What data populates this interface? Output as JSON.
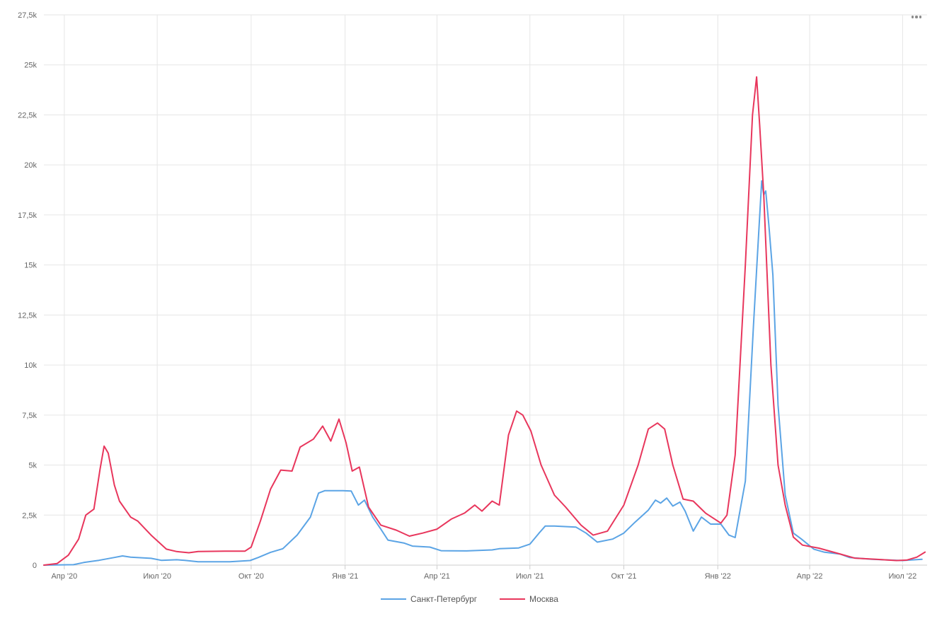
{
  "chart_data": {
    "type": "line",
    "title": "",
    "xlabel": "",
    "ylabel": "",
    "ylim": [
      0,
      27500
    ],
    "y_ticks": [
      0,
      2500,
      5000,
      7500,
      10000,
      12500,
      15000,
      17500,
      20000,
      22500,
      25000,
      27500
    ],
    "y_tick_labels": [
      "0",
      "2,5k",
      "5k",
      "7,5k",
      "10k",
      "12,5k",
      "15k",
      "17,5k",
      "20k",
      "22,5k",
      "25k",
      "27,5k"
    ],
    "x_ticks": [
      "2020-04-01",
      "2020-07-01",
      "2020-10-01",
      "2021-01-01",
      "2021-04-01",
      "2021-07-01",
      "2021-10-01",
      "2022-01-01",
      "2022-04-01",
      "2022-07-01"
    ],
    "x_tick_labels": [
      "Апр '20",
      "Июл '20",
      "Окт '20",
      "Янв '21",
      "Апр '21",
      "Июл '21",
      "Окт '21",
      "Янв '22",
      "Апр '22",
      "Июл '22"
    ],
    "xlim": [
      "2020-03-12",
      "2022-07-25"
    ],
    "grid": true,
    "legend": "bottom-center",
    "series": [
      {
        "name": "Санкт-Петербург",
        "color": "#5ba4e5",
        "points": [
          [
            "2020-03-12",
            0
          ],
          [
            "2020-04-10",
            20
          ],
          [
            "2020-04-20",
            130
          ],
          [
            "2020-05-05",
            240
          ],
          [
            "2020-05-20",
            380
          ],
          [
            "2020-05-28",
            460
          ],
          [
            "2020-06-05",
            400
          ],
          [
            "2020-06-25",
            340
          ],
          [
            "2020-07-05",
            240
          ],
          [
            "2020-07-20",
            270
          ],
          [
            "2020-07-28",
            240
          ],
          [
            "2020-08-10",
            170
          ],
          [
            "2020-09-10",
            170
          ],
          [
            "2020-09-30",
            230
          ],
          [
            "2020-10-08",
            380
          ],
          [
            "2020-10-20",
            640
          ],
          [
            "2020-11-01",
            820
          ],
          [
            "2020-11-15",
            1500
          ],
          [
            "2020-11-28",
            2400
          ],
          [
            "2020-12-06",
            3600
          ],
          [
            "2020-12-12",
            3720
          ],
          [
            "2020-12-30",
            3720
          ],
          [
            "2021-01-07",
            3700
          ],
          [
            "2021-01-14",
            3000
          ],
          [
            "2021-01-20",
            3250
          ],
          [
            "2021-01-28",
            2400
          ],
          [
            "2021-02-05",
            1800
          ],
          [
            "2021-02-12",
            1250
          ],
          [
            "2021-02-28",
            1100
          ],
          [
            "2021-03-08",
            950
          ],
          [
            "2021-03-25",
            900
          ],
          [
            "2021-04-05",
            720
          ],
          [
            "2021-04-30",
            710
          ],
          [
            "2021-05-25",
            760
          ],
          [
            "2021-06-01",
            820
          ],
          [
            "2021-06-20",
            860
          ],
          [
            "2021-07-01",
            1050
          ],
          [
            "2021-07-10",
            1600
          ],
          [
            "2021-07-16",
            1950
          ],
          [
            "2021-07-25",
            1950
          ],
          [
            "2021-08-15",
            1900
          ],
          [
            "2021-08-25",
            1600
          ],
          [
            "2021-09-05",
            1150
          ],
          [
            "2021-09-20",
            1300
          ],
          [
            "2021-10-01",
            1600
          ],
          [
            "2021-10-12",
            2150
          ],
          [
            "2021-10-25",
            2750
          ],
          [
            "2021-11-01",
            3250
          ],
          [
            "2021-11-06",
            3100
          ],
          [
            "2021-11-12",
            3350
          ],
          [
            "2021-11-18",
            2950
          ],
          [
            "2021-11-25",
            3150
          ],
          [
            "2021-11-30",
            2700
          ],
          [
            "2021-12-08",
            1700
          ],
          [
            "2021-12-16",
            2400
          ],
          [
            "2021-12-25",
            2050
          ],
          [
            "2022-01-04",
            2050
          ],
          [
            "2022-01-12",
            1500
          ],
          [
            "2022-01-18",
            1380
          ],
          [
            "2022-01-28",
            4200
          ],
          [
            "2022-02-05",
            12000
          ],
          [
            "2022-02-10",
            16500
          ],
          [
            "2022-02-13",
            19200
          ],
          [
            "2022-02-15",
            18500
          ],
          [
            "2022-02-17",
            18700
          ],
          [
            "2022-02-20",
            17000
          ],
          [
            "2022-02-24",
            14500
          ],
          [
            "2022-03-01",
            8000
          ],
          [
            "2022-03-08",
            3500
          ],
          [
            "2022-03-16",
            1600
          ],
          [
            "2022-03-24",
            1300
          ],
          [
            "2022-04-05",
            800
          ],
          [
            "2022-04-15",
            650
          ],
          [
            "2022-05-01",
            550
          ],
          [
            "2022-05-10",
            380
          ],
          [
            "2022-06-01",
            290
          ],
          [
            "2022-07-01",
            230
          ],
          [
            "2022-07-20",
            290
          ]
        ]
      },
      {
        "name": "Москва",
        "color": "#e8365c",
        "points": [
          [
            "2020-03-12",
            0
          ],
          [
            "2020-03-25",
            80
          ],
          [
            "2020-04-05",
            500
          ],
          [
            "2020-04-15",
            1300
          ],
          [
            "2020-04-22",
            2500
          ],
          [
            "2020-04-30",
            2800
          ],
          [
            "2020-05-06",
            4800
          ],
          [
            "2020-05-10",
            5950
          ],
          [
            "2020-05-14",
            5600
          ],
          [
            "2020-05-20",
            4000
          ],
          [
            "2020-05-25",
            3200
          ],
          [
            "2020-06-05",
            2400
          ],
          [
            "2020-06-12",
            2200
          ],
          [
            "2020-06-25",
            1500
          ],
          [
            "2020-07-10",
            800
          ],
          [
            "2020-07-20",
            680
          ],
          [
            "2020-08-01",
            620
          ],
          [
            "2020-08-10",
            680
          ],
          [
            "2020-09-05",
            700
          ],
          [
            "2020-09-25",
            700
          ],
          [
            "2020-10-01",
            900
          ],
          [
            "2020-10-10",
            2200
          ],
          [
            "2020-10-20",
            3800
          ],
          [
            "2020-10-30",
            4750
          ],
          [
            "2020-11-10",
            4700
          ],
          [
            "2020-11-18",
            5900
          ],
          [
            "2020-12-01",
            6300
          ],
          [
            "2020-12-10",
            6950
          ],
          [
            "2020-12-18",
            6200
          ],
          [
            "2020-12-26",
            7300
          ],
          [
            "2021-01-02",
            6100
          ],
          [
            "2021-01-08",
            4700
          ],
          [
            "2021-01-15",
            4900
          ],
          [
            "2021-01-24",
            2900
          ],
          [
            "2021-02-05",
            2000
          ],
          [
            "2021-02-20",
            1750
          ],
          [
            "2021-03-05",
            1450
          ],
          [
            "2021-03-18",
            1600
          ],
          [
            "2021-04-01",
            1800
          ],
          [
            "2021-04-15",
            2300
          ],
          [
            "2021-04-28",
            2600
          ],
          [
            "2021-05-08",
            3000
          ],
          [
            "2021-05-15",
            2700
          ],
          [
            "2021-05-25",
            3200
          ],
          [
            "2021-06-01",
            3000
          ],
          [
            "2021-06-10",
            6500
          ],
          [
            "2021-06-18",
            7700
          ],
          [
            "2021-06-24",
            7500
          ],
          [
            "2021-07-02",
            6700
          ],
          [
            "2021-07-12",
            5000
          ],
          [
            "2021-07-25",
            3500
          ],
          [
            "2021-08-05",
            2900
          ],
          [
            "2021-08-20",
            2000
          ],
          [
            "2021-09-01",
            1500
          ],
          [
            "2021-09-15",
            1700
          ],
          [
            "2021-10-01",
            3000
          ],
          [
            "2021-10-15",
            5000
          ],
          [
            "2021-10-25",
            6800
          ],
          [
            "2021-11-03",
            7100
          ],
          [
            "2021-11-10",
            6800
          ],
          [
            "2021-11-18",
            5000
          ],
          [
            "2021-11-28",
            3300
          ],
          [
            "2021-12-08",
            3200
          ],
          [
            "2021-12-20",
            2600
          ],
          [
            "2022-01-04",
            2100
          ],
          [
            "2022-01-10",
            2500
          ],
          [
            "2022-01-18",
            5500
          ],
          [
            "2022-01-28",
            15000
          ],
          [
            "2022-02-04",
            22500
          ],
          [
            "2022-02-08",
            24400
          ],
          [
            "2022-02-11",
            22000
          ],
          [
            "2022-02-15",
            18500
          ],
          [
            "2022-02-22",
            10000
          ],
          [
            "2022-03-01",
            5000
          ],
          [
            "2022-03-08",
            3000
          ],
          [
            "2022-03-16",
            1400
          ],
          [
            "2022-03-25",
            1000
          ],
          [
            "2022-04-10",
            850
          ],
          [
            "2022-05-01",
            550
          ],
          [
            "2022-05-15",
            350
          ],
          [
            "2022-06-05",
            290
          ],
          [
            "2022-06-25",
            230
          ],
          [
            "2022-07-05",
            250
          ],
          [
            "2022-07-15",
            400
          ],
          [
            "2022-07-23",
            650
          ]
        ]
      }
    ]
  },
  "menu": {
    "icon": "more-horizontal-icon"
  }
}
